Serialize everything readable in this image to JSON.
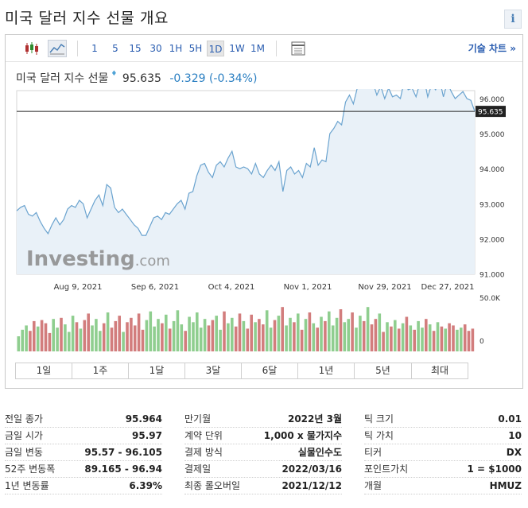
{
  "page": {
    "title": "미국 달러 지수 선물 개요",
    "info_label": "i"
  },
  "toolbar": {
    "intervals": [
      "1",
      "5",
      "15",
      "30",
      "1H",
      "5H",
      "1D",
      "1W",
      "1M"
    ],
    "active_interval": "1D",
    "tech_chart_label": "기술 차트 »"
  },
  "quote": {
    "name": "미국 달러 지수 선물",
    "flag": "♦",
    "price": "95.635",
    "change": "-0.329 (-0.34%)"
  },
  "chart_data": {
    "type": "area",
    "current_price_label": "95.635",
    "current_price": 95.635,
    "price_ticks": [
      "96.000",
      "95.000",
      "94.000",
      "93.000",
      "92.000",
      "91.000"
    ],
    "price_range": [
      91.0,
      96.0
    ],
    "volume_ticks": [
      "50.0K",
      "0"
    ],
    "volume_range": [
      0,
      50000
    ],
    "date_labels": [
      "Aug 9, 2021",
      "Sep 6, 2021",
      "Oct 4, 2021",
      "Nov 1, 2021",
      "Nov 29, 2021",
      "Dec 27, 2021"
    ],
    "watermark": "Investing.com",
    "prices": [
      92.8,
      92.9,
      92.95,
      92.7,
      92.65,
      92.75,
      92.5,
      92.3,
      92.15,
      92.4,
      92.6,
      92.4,
      92.55,
      92.85,
      92.95,
      92.9,
      93.1,
      93.0,
      92.6,
      92.85,
      93.1,
      93.25,
      92.95,
      93.55,
      93.45,
      92.9,
      92.75,
      92.85,
      92.7,
      92.55,
      92.4,
      92.3,
      92.1,
      92.1,
      92.35,
      92.6,
      92.65,
      92.55,
      92.75,
      92.7,
      92.85,
      93.0,
      93.1,
      92.85,
      93.3,
      93.35,
      93.8,
      94.1,
      94.15,
      93.9,
      93.75,
      94.1,
      94.2,
      94.05,
      94.3,
      94.5,
      94.05,
      94.0,
      94.05,
      94.0,
      93.85,
      94.15,
      93.85,
      93.75,
      93.95,
      94.1,
      93.95,
      94.2,
      93.35,
      93.95,
      94.05,
      93.85,
      93.95,
      93.75,
      94.15,
      94.05,
      94.6,
      94.1,
      94.25,
      94.2,
      95.0,
      95.15,
      95.35,
      95.25,
      95.9,
      96.1,
      95.85,
      96.3,
      96.9,
      96.65,
      96.9,
      96.45,
      96.1,
      96.35,
      96.0,
      96.3,
      96.05,
      96.1,
      96.0,
      96.5,
      96.25,
      96.3,
      96.05,
      96.45,
      96.6,
      96.05,
      96.4,
      96.25,
      96.55,
      96.05,
      96.45,
      96.2,
      96.0,
      96.1,
      96.2,
      96.0,
      95.95,
      95.64
    ],
    "volumes_k": [
      14,
      20,
      24,
      19,
      28,
      23,
      29,
      26,
      17,
      30,
      22,
      31,
      25,
      18,
      33,
      27,
      21,
      29,
      35,
      24,
      30,
      19,
      26,
      36,
      22,
      28,
      33,
      18,
      27,
      31,
      24,
      35,
      20,
      29,
      37,
      23,
      30,
      26,
      34,
      21,
      28,
      38,
      25,
      19,
      32,
      27,
      36,
      22,
      30,
      24,
      29,
      33,
      20,
      37,
      26,
      31,
      23,
      35,
      28,
      21,
      34,
      27,
      30,
      25,
      38,
      22,
      29,
      33,
      41,
      24,
      31,
      27,
      35,
      20,
      30,
      36,
      26,
      22,
      32,
      28,
      37,
      24,
      31,
      39,
      27,
      30,
      36,
      22,
      33,
      28,
      41,
      25,
      30,
      35,
      18,
      27,
      23,
      29,
      21,
      26,
      32,
      24,
      20,
      28,
      22,
      30,
      25,
      19,
      27,
      23,
      21,
      26,
      24,
      20,
      22,
      25,
      19,
      21
    ],
    "volume_colors": {
      "up": "#8fce8f",
      "down": "#d27d7d"
    }
  },
  "ranges": [
    "1일",
    "1주",
    "1달",
    "3달",
    "6달",
    "1년",
    "5년",
    "최대"
  ],
  "stats": {
    "col1": [
      {
        "label": "전일 종가",
        "value": "95.964"
      },
      {
        "label": "금일 시가",
        "value": "95.97"
      },
      {
        "label": "금일 변동",
        "value": "95.57 - 96.105"
      },
      {
        "label": "52주 변동폭",
        "value": "89.165 - 96.94"
      },
      {
        "label": "1년 변동률",
        "value": "6.39%"
      }
    ],
    "col2": [
      {
        "label": "만기월",
        "value": "2022년 3월"
      },
      {
        "label": "계약 단위",
        "value": "1,000 x 물가지수"
      },
      {
        "label": "결제 방식",
        "value": "실물인수도"
      },
      {
        "label": "결제일",
        "value": "2022/03/16"
      },
      {
        "label": "최종 롤오버일",
        "value": "2021/12/12"
      }
    ],
    "col3": [
      {
        "label": "틱 크기",
        "value": "0.01"
      },
      {
        "label": "틱 가치",
        "value": "10"
      },
      {
        "label": "티커",
        "value": "DX"
      },
      {
        "label": "포인트가치",
        "value": "1 = $1000"
      },
      {
        "label": "개월",
        "value": "HMUZ"
      }
    ]
  },
  "colors": {
    "line": "#6aa3cf",
    "area": "#e9f1f8",
    "price_line": "#222222",
    "price_label_bg": "#222222",
    "link": "#2a5db0",
    "change": "#2a7fc2"
  }
}
